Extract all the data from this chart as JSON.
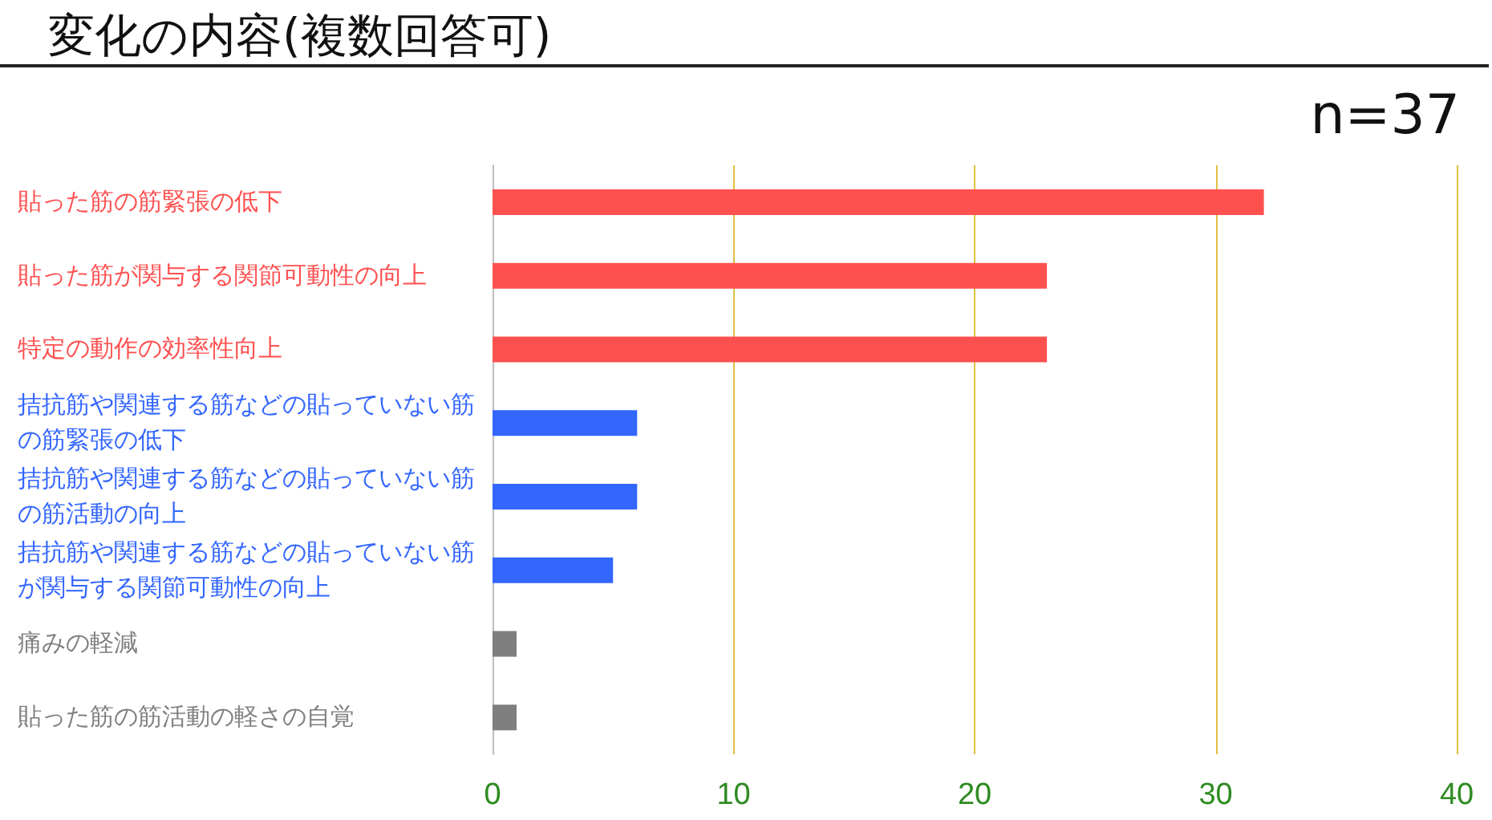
{
  "chart_data": {
    "type": "bar",
    "orientation": "horizontal",
    "title": "変化の内容(複数回答可)",
    "annotations": [
      "n=37"
    ],
    "categories": [
      "貼った筋の筋緊張の低下",
      "貼った筋が関与する関節可動性の向上",
      "特定の動作の効率性向上",
      "拮抗筋や関連する筋などの貼っていない筋の筋緊張の低下",
      "拮抗筋や関連する筋などの貼っていない筋の筋活動の向上",
      "拮抗筋や関連する筋などの貼っていない筋が関与する関節可動性の向上",
      "痛みの軽減",
      "貼った筋の筋活動の軽さの自覚"
    ],
    "values": [
      32,
      23,
      23,
      6,
      6,
      5,
      1,
      1
    ],
    "colors": [
      "#ff5050",
      "#ff5050",
      "#ff5050",
      "#3366ff",
      "#3366ff",
      "#3366ff",
      "#7f7f7f",
      "#7f7f7f"
    ],
    "xlim": [
      0,
      40
    ],
    "xticks": [
      0,
      10,
      20,
      30,
      40
    ],
    "grid": "x"
  }
}
